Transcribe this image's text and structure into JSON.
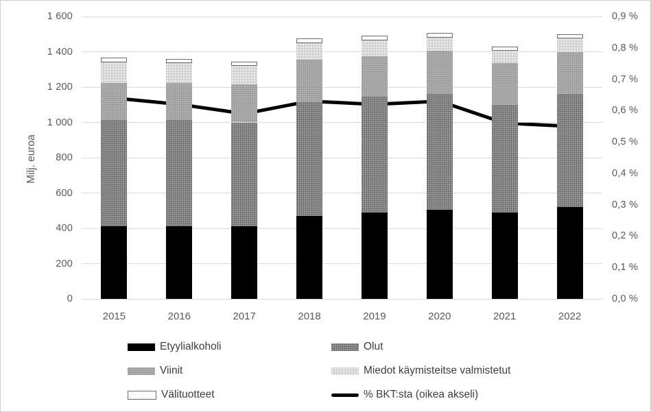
{
  "chart_data": {
    "type": "bar",
    "subtype": "stacked-column-with-line",
    "title": "",
    "categories": [
      "2015",
      "2016",
      "2017",
      "2018",
      "2019",
      "2020",
      "2021",
      "2022"
    ],
    "series": [
      {
        "name": "Etyylialkoholi",
        "css": "fill-etyyli",
        "color": "#000000",
        "values": [
          410,
          410,
          410,
          470,
          490,
          505,
          490,
          520
        ]
      },
      {
        "name": "Olut",
        "css": "fill-olut",
        "color": "#898989",
        "values": [
          605,
          605,
          590,
          645,
          655,
          655,
          610,
          640
        ]
      },
      {
        "name": "Viinit",
        "css": "fill-viinit",
        "color": "#aeaeae",
        "values": [
          210,
          210,
          215,
          240,
          230,
          245,
          235,
          240
        ]
      },
      {
        "name": "Miedot käymisteitse valmistetut",
        "css": "fill-miedot",
        "color": "#d3d3d3",
        "values": [
          115,
          110,
          105,
          95,
          90,
          75,
          70,
          75
        ]
      },
      {
        "name": "Välituotteet",
        "css": "fill-vali",
        "color": "#ffffff",
        "border_color": "#6b6b6b",
        "values": [
          15,
          20,
          15,
          20,
          25,
          25,
          20,
          20
        ]
      }
    ],
    "line_series": {
      "name": "% BKT:sta (oikea akseli)",
      "color": "#000000",
      "values": [
        0.64,
        0.62,
        0.59,
        0.63,
        0.62,
        0.63,
        0.56,
        0.55
      ]
    },
    "left_axis": {
      "label": "Milj. euroa",
      "min": 0,
      "max": 1600,
      "step": 200,
      "tick_labels": [
        "0",
        "200",
        "400",
        "600",
        "800",
        "1 000",
        "1 200",
        "1 400",
        "1 600"
      ]
    },
    "right_axis": {
      "min": 0,
      "max": 0.9,
      "step": 0.1,
      "tick_labels": [
        "0,0 %",
        "0,1 %",
        "0,2 %",
        "0,3 %",
        "0,4 %",
        "0,5 %",
        "0,6 %",
        "0,7 %",
        "0,8 %",
        "0,9 %"
      ]
    },
    "grid": true,
    "legend_position": "bottom",
    "colors": {
      "gridline": "#d9d9d9",
      "axis_text": "#595959",
      "legend_text": "#3d3d3d",
      "figure_border": "#cfcfcf"
    }
  }
}
